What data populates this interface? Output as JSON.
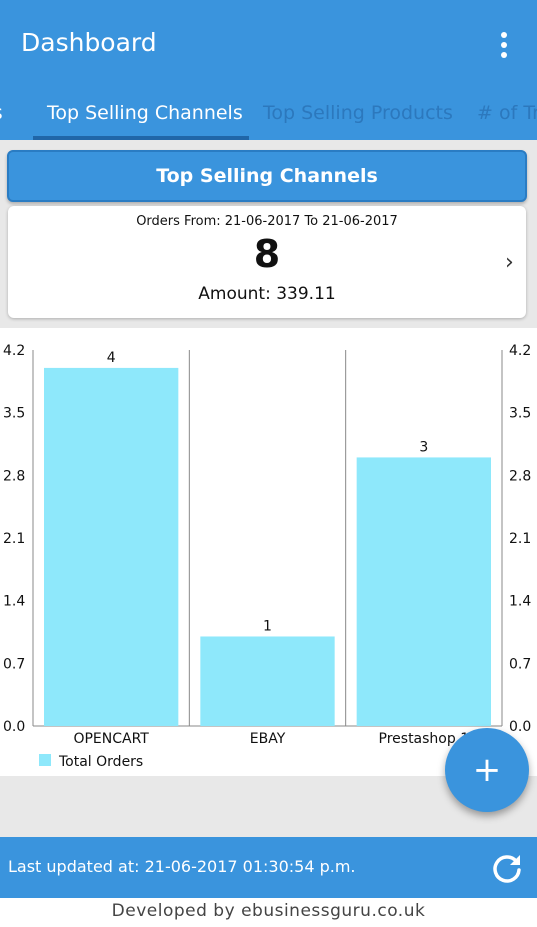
{
  "app_bar": {
    "title": "Dashboard",
    "menu_icon": "more-vertical-icon"
  },
  "tabs": [
    {
      "label": "rs",
      "active": false
    },
    {
      "label": "Top Selling Channels",
      "active": true
    },
    {
      "label": "Top Selling Products",
      "active": false
    },
    {
      "label": "# of Tr",
      "active": false
    }
  ],
  "summary": {
    "header": "Top Selling Channels",
    "orders_range": "Orders From: 21-06-2017 To 21-06-2017",
    "orders_count": "8",
    "amount": "Amount: 339.11",
    "chevron_icon": "chevron-right-icon"
  },
  "chart_data": {
    "type": "bar",
    "categories": [
      "OPENCART",
      "EBAY",
      "Prestashop 1"
    ],
    "series": [
      {
        "name": "Total Orders",
        "values": [
          4,
          1,
          3
        ]
      }
    ],
    "data_labels": [
      "4",
      "1",
      "3"
    ],
    "y_ticks": [
      "0.0",
      "0.7",
      "1.4",
      "2.1",
      "2.8",
      "3.5",
      "4.2"
    ],
    "ylim": [
      0,
      4.2
    ],
    "legend_position": "bottom-left",
    "bar_color": "#8ee8fb",
    "grid": "vertical-only"
  },
  "fab": {
    "icon": "plus-icon",
    "glyph": "+"
  },
  "footer": {
    "last_updated": "Last updated at: 21-06-2017 01:30:54 p.m.",
    "refresh_icon": "refresh-icon"
  },
  "credit": "Developed by ebusinessguru.co.uk",
  "colors": {
    "primary": "#3a94dd",
    "tab_inactive": "#2c78bd",
    "bar": "#8ee8fb",
    "background_grey": "#e8e8e8"
  }
}
